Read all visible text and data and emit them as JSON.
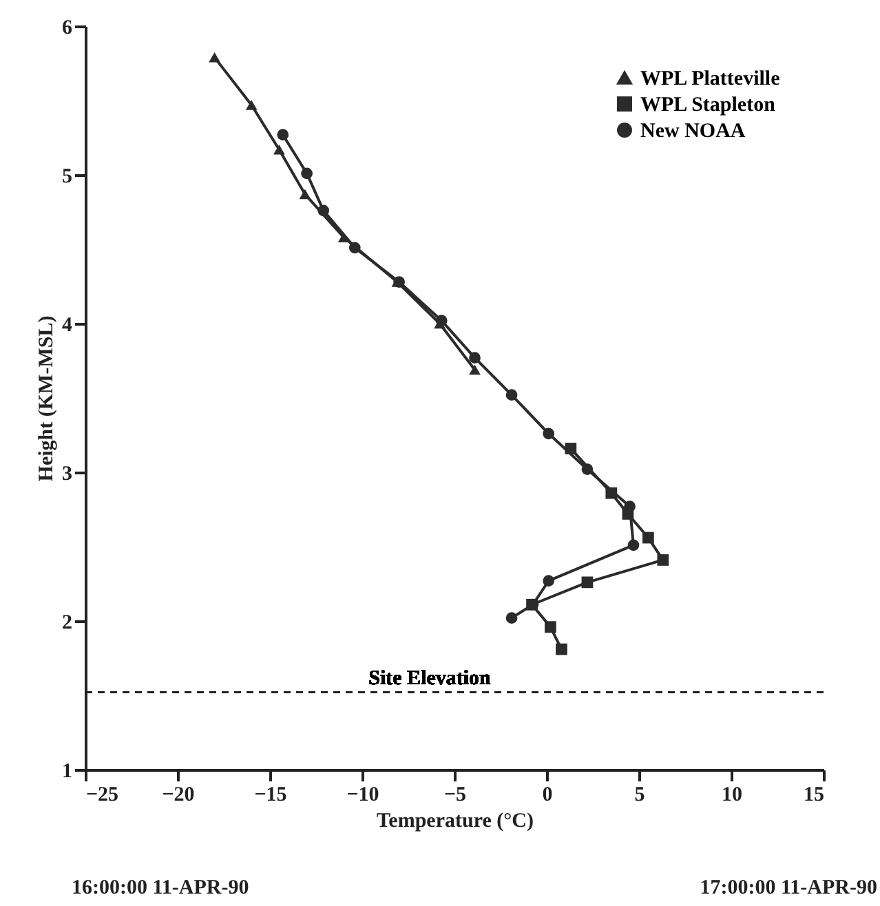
{
  "chart_data": {
    "type": "line",
    "xlabel": "Temperature (°C)",
    "ylabel": "Height (KM-MSL)",
    "xlim": [
      -25,
      15
    ],
    "xticks": [
      -25,
      -20,
      -15,
      -10,
      -5,
      0,
      5,
      10,
      15
    ],
    "ylim": [
      1,
      6
    ],
    "yticks": [
      1,
      2,
      3,
      4,
      5,
      6
    ],
    "grid": false,
    "legend": "top right",
    "line_style": "solid",
    "series": [
      {
        "name": "WPL Platteville",
        "color": "#2b2b2b",
        "marker": "triangle",
        "x": [
          -18.0,
          -16.0,
          -14.5,
          -13.1,
          -11.0,
          -8.1,
          -5.8,
          -3.9
        ],
        "values": [
          5.79,
          5.47,
          5.17,
          4.87,
          4.58,
          4.28,
          4.0,
          3.69
        ]
      },
      {
        "name": "WPL Stapleton",
        "color": "#2b2b2b",
        "marker": "square",
        "x": [
          1.3,
          3.5,
          4.4,
          5.5,
          6.3,
          2.2,
          -0.8,
          0.2,
          0.8
        ],
        "values": [
          3.16,
          2.86,
          2.72,
          2.56,
          2.41,
          2.26,
          2.11,
          1.96,
          1.81
        ]
      },
      {
        "name": "New NOAA",
        "color": "#2b2b2b",
        "marker": "circle",
        "x": [
          -14.3,
          -13.0,
          -12.1,
          -10.4,
          -8.0,
          -5.7,
          -3.9,
          -1.9,
          0.1,
          2.2,
          4.5,
          4.7,
          0.1,
          -0.75,
          -1.9
        ],
        "values": [
          5.27,
          5.01,
          4.76,
          4.51,
          4.28,
          4.02,
          3.77,
          3.52,
          3.26,
          3.02,
          2.77,
          2.51,
          2.27,
          2.11,
          2.02
        ]
      }
    ],
    "ref_lines": [
      {
        "axis": "y",
        "value": 1.52,
        "label": "Site Elevation",
        "line_style": "dashed"
      }
    ],
    "annotations": [
      "16:00:00 11-APR-90",
      "17:00:00 11-APR-90"
    ]
  }
}
